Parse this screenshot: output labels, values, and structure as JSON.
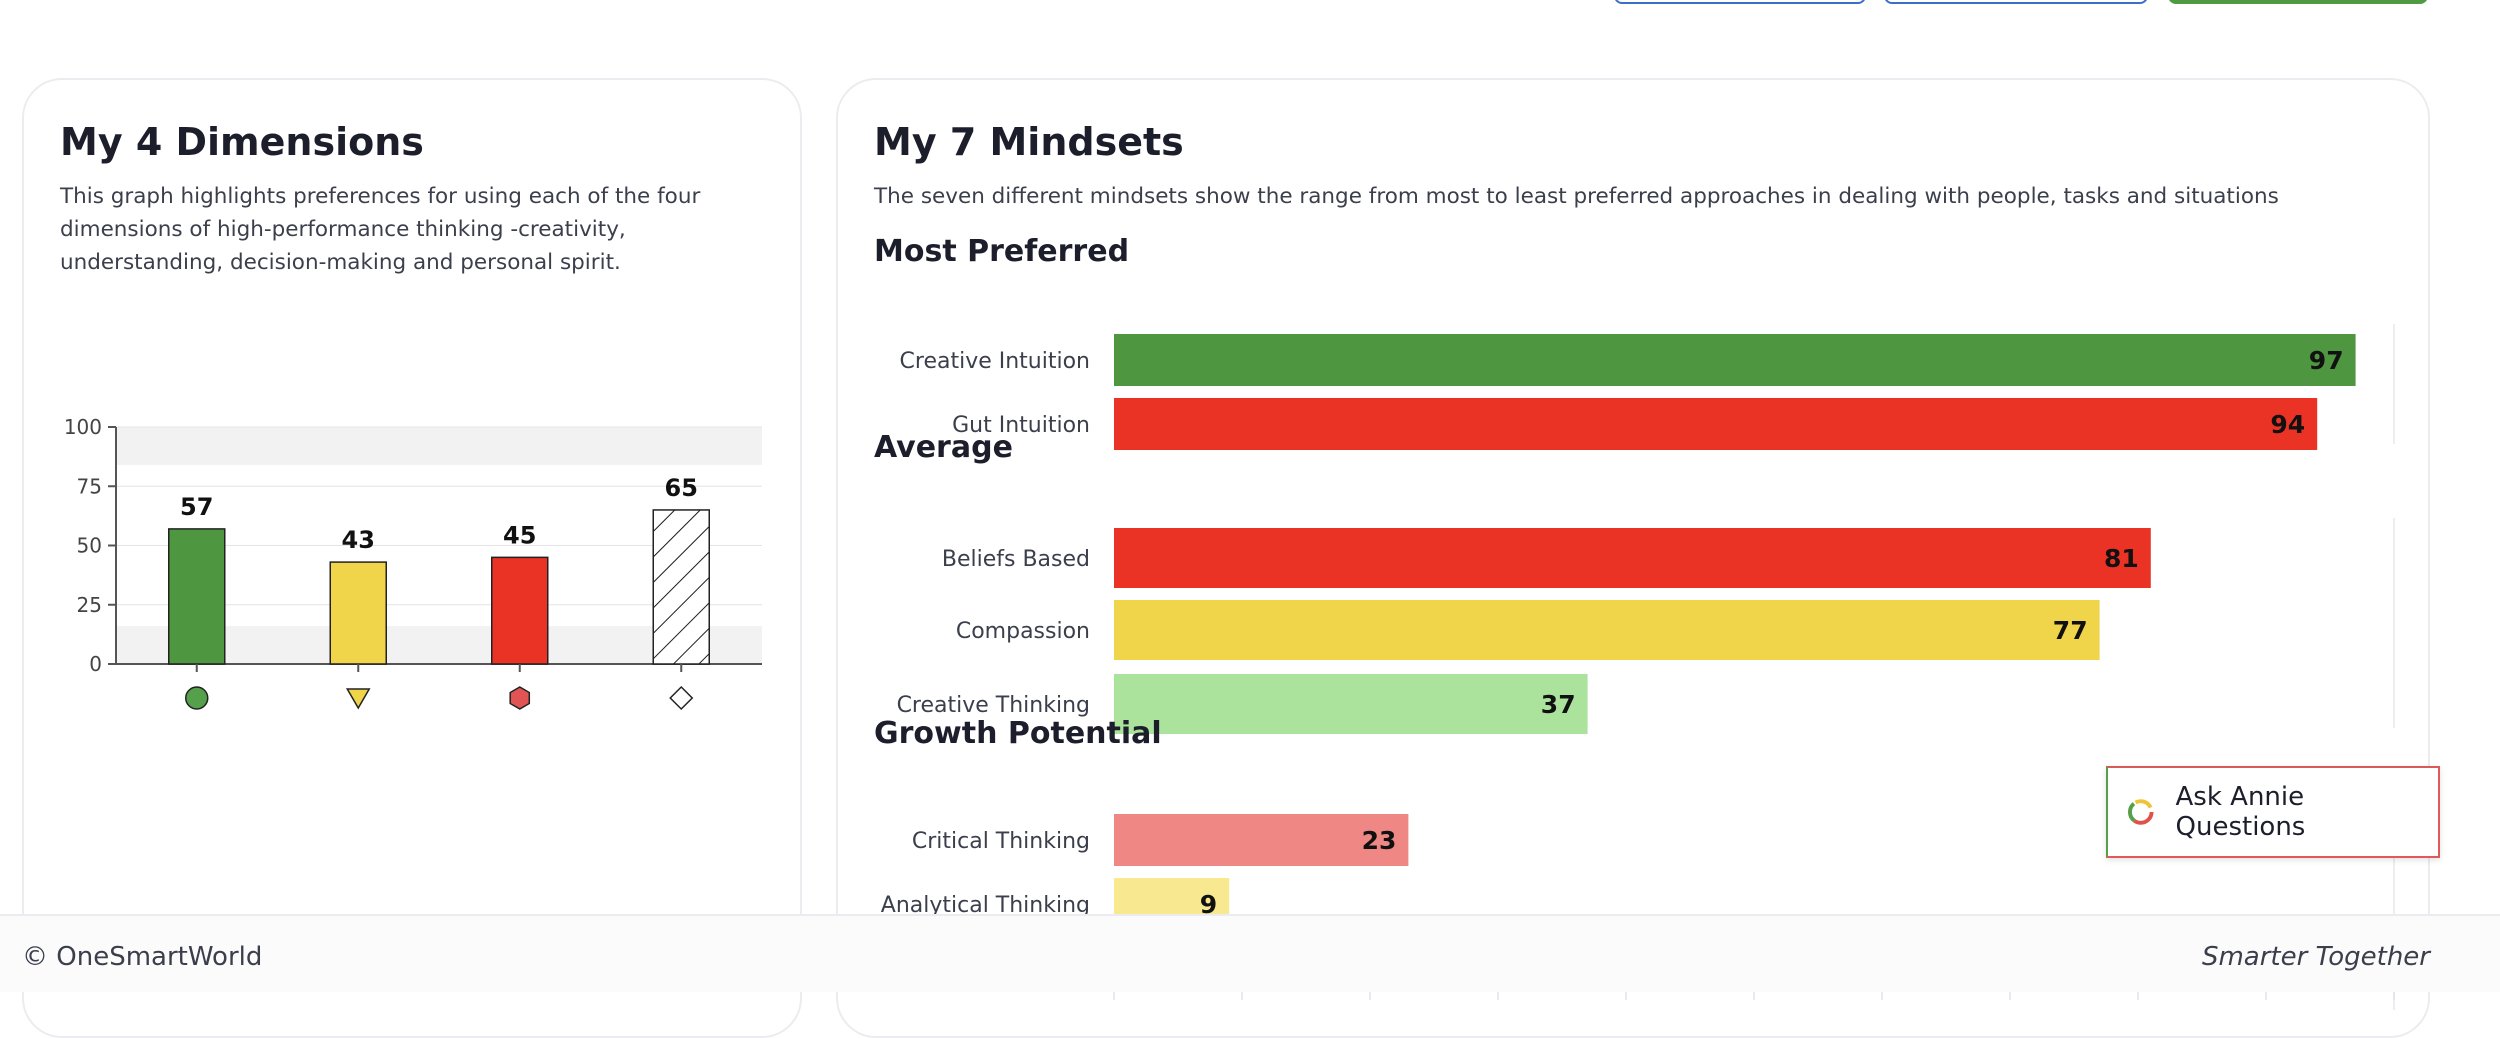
{
  "dimensions_card": {
    "title": "My 4 Dimensions",
    "description_lines": [
      "This graph highlights preferences for using each of the four",
      "dimensions of high-performance thinking -creativity,",
      "understanding, decision-making and personal spirit."
    ]
  },
  "mindsets_card": {
    "title": "My 7 Mindsets",
    "description": "The seven different mindsets show the range from most to least preferred approaches in dealing with people, tasks and situations"
  },
  "ask_button": {
    "label": "Ask Annie Questions",
    "icon": "annie-logo-icon"
  },
  "footer": {
    "left": "© OneSmartWorld",
    "right": "Smarter Together"
  },
  "chart_data": [
    {
      "type": "bar",
      "categories": [
        "",
        "",
        "",
        ""
      ],
      "values": [
        57,
        43,
        45,
        65
      ],
      "colors": [
        "#4f9641",
        "#f0d44a",
        "#ea3324",
        "hatched"
      ],
      "markers": [
        "circle",
        "triangle-down",
        "hexagon",
        "diamond"
      ],
      "marker_colors": [
        "#55a04a",
        "#f0d44a",
        "#e05454",
        "#ffffff"
      ],
      "yticks": [
        0,
        25,
        50,
        75,
        100
      ],
      "ylim": [
        0,
        100
      ],
      "bands": [
        [
          84,
          100
        ],
        [
          0,
          16
        ]
      ],
      "grid": true
    },
    {
      "type": "bar",
      "orientation": "horizontal",
      "xlim": [
        0,
        100
      ],
      "groups": [
        {
          "name": "Most Preferred",
          "items": [
            {
              "label": "Creative Intuition",
              "value": 97,
              "color": "#4f9641"
            },
            {
              "label": "Gut Intuition",
              "value": 94,
              "color": "#ea3324"
            }
          ]
        },
        {
          "name": "Average",
          "items": [
            {
              "label": "Beliefs Based",
              "value": 81,
              "color": "#ea3324"
            },
            {
              "label": "Compassion",
              "value": 77,
              "color": "#f0d44a"
            },
            {
              "label": "Creative Thinking",
              "value": 37,
              "color": "#abe39c"
            }
          ]
        },
        {
          "name": "Growth Potential",
          "items": [
            {
              "label": "Critical Thinking",
              "value": 23,
              "color": "#ef8784"
            },
            {
              "label": "Analytical Thinking",
              "value": 9,
              "color": "#f8e88f"
            }
          ]
        }
      ]
    }
  ]
}
